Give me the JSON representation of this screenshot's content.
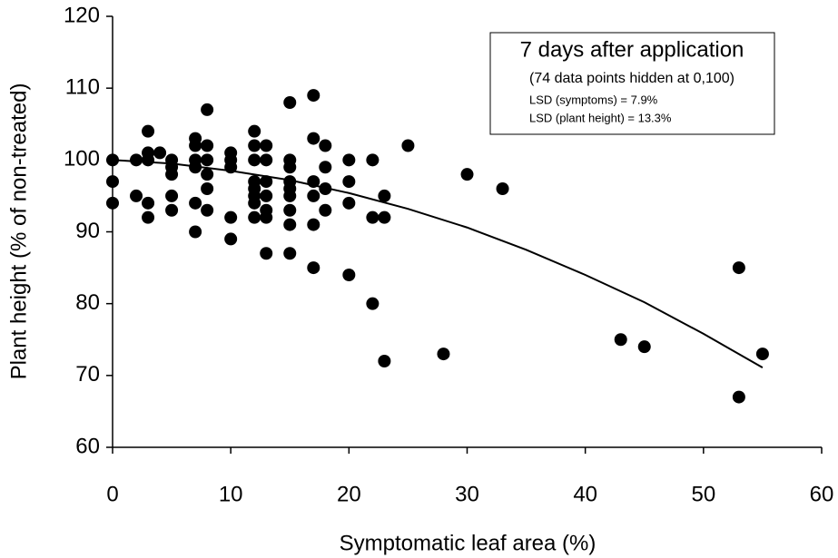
{
  "chart_data": {
    "type": "scatter",
    "x_label": "Symptomatic leaf area (%)",
    "y_label": "Plant height (% of non-treated)",
    "xlim": [
      0,
      60
    ],
    "xticks": [
      0,
      10,
      20,
      30,
      40,
      50,
      60
    ],
    "ylim": [
      60,
      120
    ],
    "yticks": [
      60,
      70,
      80,
      90,
      100,
      110,
      120
    ],
    "color": "#000000",
    "x": [
      0,
      0,
      0,
      2,
      2,
      3,
      3,
      3,
      3,
      3,
      4,
      5,
      5,
      5,
      5,
      5,
      7,
      7,
      7,
      7,
      7,
      7,
      8,
      8,
      8,
      8,
      8,
      8,
      10,
      10,
      10,
      10,
      10,
      12,
      12,
      12,
      12,
      12,
      12,
      12,
      12,
      13,
      13,
      13,
      13,
      13,
      13,
      13,
      15,
      15,
      15,
      15,
      15,
      15,
      15,
      15,
      15,
      17,
      17,
      17,
      17,
      17,
      17,
      18,
      18,
      18,
      18,
      20,
      20,
      20,
      20,
      22,
      22,
      22,
      23,
      23,
      23,
      25,
      28,
      30,
      33,
      43,
      45,
      53,
      53,
      55
    ],
    "y": [
      100,
      97,
      94,
      100,
      95,
      104,
      101,
      100,
      94,
      92,
      101,
      100,
      99,
      98,
      95,
      93,
      103,
      102,
      100,
      99,
      94,
      90,
      107,
      102,
      100,
      98,
      96,
      93,
      101,
      100,
      99,
      92,
      89,
      104,
      102,
      100,
      97,
      96,
      95,
      94,
      92,
      102,
      100,
      97,
      95,
      93,
      92,
      87,
      108,
      100,
      99,
      97,
      96,
      95,
      93,
      91,
      87,
      109,
      103,
      97,
      95,
      91,
      85,
      102,
      99,
      96,
      93,
      100,
      97,
      94,
      84,
      100,
      92,
      80,
      95,
      92,
      72,
      102,
      73,
      98,
      96,
      75,
      74,
      85,
      67,
      73
    ],
    "fit": {
      "x": [
        0,
        5,
        10,
        15,
        20,
        25,
        30,
        35,
        40,
        45,
        50,
        55
      ],
      "y": [
        100,
        99.5,
        98.5,
        97.2,
        95.4,
        93.2,
        90.6,
        87.5,
        84.0,
        80.2,
        75.8,
        71.1
      ]
    },
    "annotation": {
      "title": "7 days after application",
      "lines": [
        "(74 data points hidden at 0,100)",
        "LSD (symptoms) = 7.9%",
        "LSD (plant height) = 13.3%"
      ]
    }
  }
}
